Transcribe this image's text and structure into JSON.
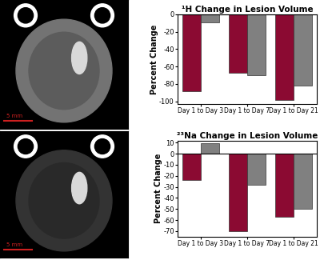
{
  "chart_data": [
    {
      "type": "bar",
      "title": "¹H Change in Lesion Volume",
      "y_label": "Percent Change",
      "categories": [
        "Day 1 to Day 3",
        "Day 1 to Day 7",
        "Day 1 to Day 21"
      ],
      "series": [
        {
          "color": "#8b0a32",
          "values": [
            -88,
            -67,
            -98
          ]
        },
        {
          "color": "#808080",
          "values": [
            -9,
            -70,
            -82
          ]
        }
      ],
      "ylim": [
        -103,
        0
      ],
      "yticks": [
        0,
        -20,
        -40,
        -60,
        -80,
        -100
      ]
    },
    {
      "type": "bar",
      "title": "²³Na Change in Lesion Volume",
      "y_label": "Percent Change",
      "categories": [
        "Day 1 to Day 3",
        "Day 1 to Day 7",
        "Day 1 to Day 21"
      ],
      "series": [
        {
          "color": "#8b0a32",
          "values": [
            -24,
            -70,
            -57
          ]
        },
        {
          "color": "#808080",
          "values": [
            9.5,
            -28,
            -50
          ]
        }
      ],
      "ylim": [
        -75,
        12
      ],
      "yticks": [
        10,
        0,
        -10,
        -20,
        -30,
        -40,
        -50,
        -60,
        -70
      ]
    }
  ],
  "images": [
    {
      "scale_bar": "5 mm"
    },
    {
      "scale_bar": "5 mm"
    }
  ]
}
